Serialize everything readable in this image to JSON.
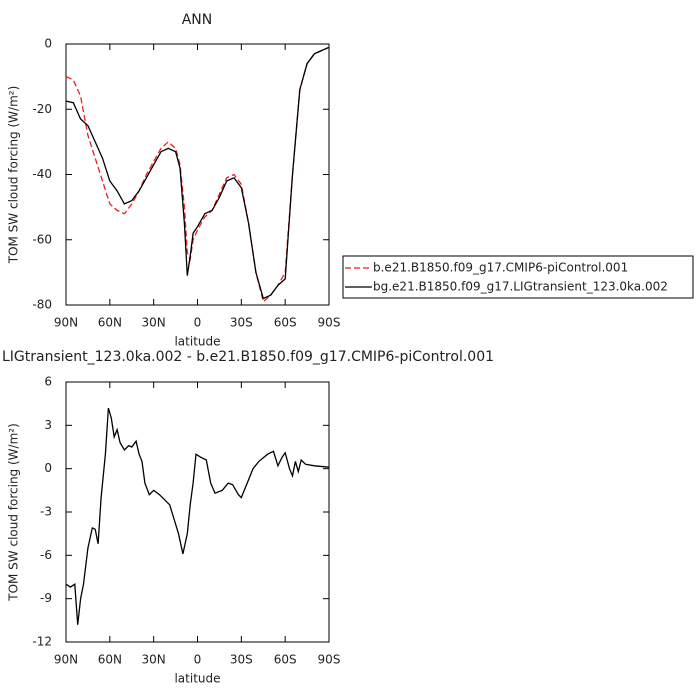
{
  "chart_data": [
    {
      "type": "line",
      "title": "ANN",
      "x_label": "latitude",
      "y_label": "TOM SW cloud forcing (W/m²)",
      "x": [
        90,
        85,
        80,
        75,
        70,
        65,
        60,
        55,
        50,
        45,
        40,
        35,
        30,
        25,
        20,
        15,
        12,
        9,
        7,
        5,
        3,
        0,
        -5,
        -10,
        -15,
        -20,
        -25,
        -30,
        -35,
        -40,
        -45,
        -50,
        -55,
        -60,
        -65,
        -70,
        -75,
        -80,
        -85,
        -90
      ],
      "series": [
        {
          "name": "b.e21.B1850.f09_g17.CMIP6-piControl.001",
          "color": "#e8201e",
          "line_style": "dashed",
          "values": [
            -10,
            -11,
            -16,
            -28,
            -35,
            -42,
            -49,
            -51,
            -52,
            -49,
            -45,
            -40,
            -36,
            -32,
            -30,
            -32,
            -37,
            -50,
            -64,
            -66,
            -60,
            -57,
            -53,
            -51,
            -46,
            -41,
            -40,
            -43,
            -55,
            -70,
            -79,
            -77,
            -74,
            -70,
            -40,
            -14,
            -6,
            -3,
            -2,
            -1
          ]
        },
        {
          "name": "bg.e21.B1850.f09_g17.LIGtransient_123.0ka.002",
          "color": "#000000",
          "line_style": "solid",
          "values": [
            -17.5,
            -18,
            -23,
            -25,
            -30,
            -35,
            -42,
            -45,
            -49,
            -48,
            -45,
            -41,
            -37,
            -33,
            -32,
            -33,
            -38,
            -55,
            -71,
            -65,
            -58,
            -56,
            -52,
            -51,
            -47,
            -42,
            -41,
            -44,
            -55,
            -70,
            -78,
            -77,
            -74,
            -72,
            -40,
            -14,
            -6,
            -3,
            -2,
            -1
          ]
        }
      ],
      "xlim": [
        90,
        -90
      ],
      "ylim": [
        0,
        -80
      ],
      "xticks": [
        {
          "value": 90,
          "label": "90N"
        },
        {
          "value": 60,
          "label": "60N"
        },
        {
          "value": 30,
          "label": "30N"
        },
        0,
        {
          "value": -30,
          "label": "30S"
        },
        {
          "value": -60,
          "label": "60S"
        },
        {
          "value": -90,
          "label": "90S"
        }
      ],
      "yticks": [
        0,
        -20,
        -40,
        -60,
        -80
      ],
      "legend": "right"
    },
    {
      "type": "line",
      "title": "LIGtransient_123.0ka.002 - b.e21.B1850.f09_g17.CMIP6-piControl.001",
      "x_label": "latitude",
      "y_label": "TOM SW cloud forcing (W/m²)",
      "x": [
        90,
        87,
        84,
        82,
        80,
        78,
        75,
        72,
        70,
        68,
        66,
        63,
        61,
        59,
        57,
        55,
        53,
        50,
        47,
        45,
        42,
        40,
        38,
        36,
        33,
        30,
        26,
        19,
        13,
        10,
        7,
        5,
        3,
        1,
        -2,
        -6,
        -9,
        -12,
        -17,
        -21,
        -24,
        -28,
        -30,
        -34,
        -38,
        -42,
        -48,
        -52,
        -55,
        -58,
        -60,
        -63,
        -65,
        -67,
        -69,
        -71,
        -74,
        -80,
        -90
      ],
      "series": [
        {
          "color": "#000000",
          "line_style": "solid",
          "values": [
            -8,
            -8.2,
            -8,
            -10.8,
            -9,
            -8,
            -5.5,
            -4.1,
            -4.2,
            -5.2,
            -2,
            1,
            4.2,
            3.5,
            2.2,
            2.7,
            1.8,
            1.3,
            1.6,
            1.5,
            1.9,
            1,
            0.5,
            -1,
            -1.8,
            -1.5,
            -1.8,
            -2.5,
            -4.5,
            -5.9,
            -4.5,
            -2.5,
            -1,
            1,
            0.8,
            0.6,
            -1,
            -1.7,
            -1.5,
            -1,
            -1.1,
            -1.8,
            -2,
            -1,
            0,
            0.5,
            1,
            1.2,
            0.2,
            0.8,
            1.1,
            0,
            -0.5,
            0.5,
            -0.2,
            0.6,
            0.3,
            0.2,
            0.1
          ]
        }
      ],
      "xlim": [
        90,
        -90
      ],
      "ylim": [
        6,
        -12
      ],
      "xticks": [
        {
          "value": 90,
          "label": "90N"
        },
        {
          "value": 60,
          "label": "60N"
        },
        {
          "value": 30,
          "label": "30N"
        },
        0,
        {
          "value": -30,
          "label": "30S"
        },
        {
          "value": -60,
          "label": "60S"
        },
        {
          "value": -90,
          "label": "90S"
        }
      ],
      "yticks": [
        6,
        3,
        0,
        -3,
        -6,
        -9,
        -12
      ]
    }
  ]
}
